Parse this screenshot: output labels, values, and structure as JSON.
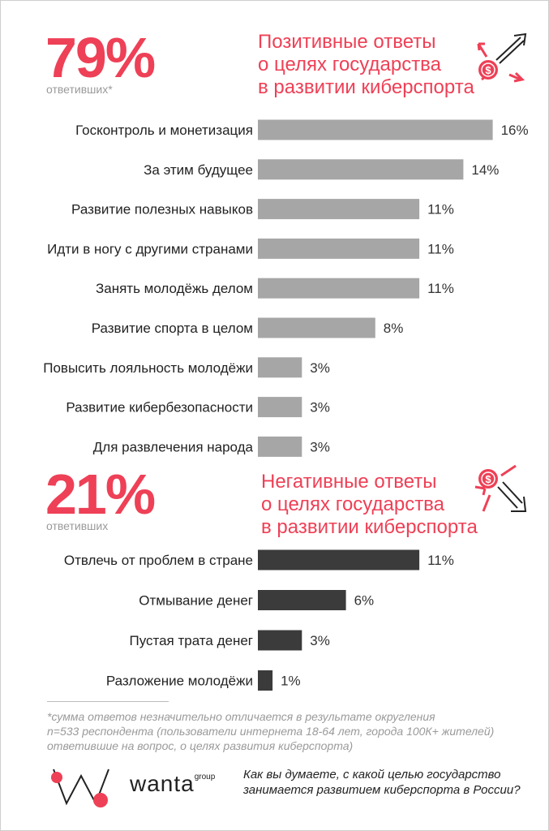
{
  "positive": {
    "percent": "79%",
    "respondents": "ответивших*",
    "heading": [
      "Позитивные ответы",
      "о целях  государства",
      "в развитии киберспорта"
    ]
  },
  "negative": {
    "percent": "21%",
    "respondents": "ответивших",
    "heading": [
      "Негативные ответы",
      "о целях государства",
      "в развитии киберспорта"
    ]
  },
  "colors": {
    "accent": "#ee4056",
    "positive_bar": "#a6a6a6",
    "negative_bar": "#3b3b3b"
  },
  "icons": {
    "positive": "money-arrows-out-icon",
    "negative": "money-arrows-in-icon",
    "logo": "wanta-logo"
  },
  "chart_data": [
    {
      "type": "bar",
      "orientation": "horizontal",
      "categories": [
        "Госконтроль и монетизация",
        "За этим будущее",
        "Развитие полезных навыков",
        "Идти в ногу с другими странами",
        "Занять молодёжь делом",
        "Развитие спорта в целом",
        "Повысить лояльность молодёжи",
        "Развитие кибербезопасности",
        "Для развлечения народа"
      ],
      "values": [
        16,
        14,
        11,
        11,
        11,
        8,
        3,
        3,
        3
      ],
      "value_labels": [
        "16%",
        "14%",
        "11%",
        "11%",
        "11%",
        "8%",
        "3%",
        "3%",
        "3%"
      ],
      "color": "#a6a6a6"
    },
    {
      "type": "bar",
      "orientation": "horizontal",
      "categories": [
        "Отвлечь от проблем в стране",
        "Отмывание денег",
        "Пустая трата денег",
        "Разложение молодёжи"
      ],
      "values": [
        11,
        6,
        3,
        1
      ],
      "value_labels": [
        "11%",
        "6%",
        "3%",
        "1%"
      ],
      "color": "#3b3b3b"
    }
  ],
  "footnote": [
    "*сумма ответов  незначительно отличается в результате округления",
    "n=533 респондента (пользователи интернета 18-64  лет, города 100К+ жителей)",
    "ответившие на вопрос, о целях развития  киберспорта)"
  ],
  "brand": {
    "name": "wanta",
    "suffix": "group"
  },
  "question": [
    "Как вы думаете, с какой целью государство",
    "занимается развитием киберспорта в России?"
  ]
}
